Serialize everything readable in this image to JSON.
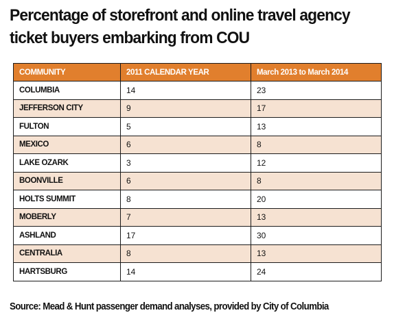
{
  "title": {
    "line1": "Percentage of storefront and online travel agency",
    "line2": "ticket buyers embarking from COU"
  },
  "colors": {
    "header_bg": "#e17f2d",
    "shade_row": "#f6e2d2",
    "border": "#1a1a1a"
  },
  "table": {
    "headers": [
      "COMMUNITY",
      "2011 CALENDAR YEAR",
      "March 2013 to March 2014"
    ],
    "rows": [
      [
        "COLUMBIA",
        "14",
        "23"
      ],
      [
        "JEFFERSON CITY",
        "9",
        "17"
      ],
      [
        "FULTON",
        "5",
        "13"
      ],
      [
        "MEXICO",
        "6",
        "8"
      ],
      [
        "LAKE OZARK",
        "3",
        "12"
      ],
      [
        "BOONVILLE",
        "6",
        "8"
      ],
      [
        "HOLTS SUMMIT",
        "8",
        "20"
      ],
      [
        "MOBERLY",
        "7",
        "13"
      ],
      [
        "ASHLAND",
        "17",
        "30"
      ],
      [
        "CENTRALIA",
        "8",
        "13"
      ],
      [
        "HARTSBURG",
        "14",
        "24"
      ]
    ]
  },
  "source": "Source: Mead & Hunt passenger demand analyses, provided by City of Columbia"
}
